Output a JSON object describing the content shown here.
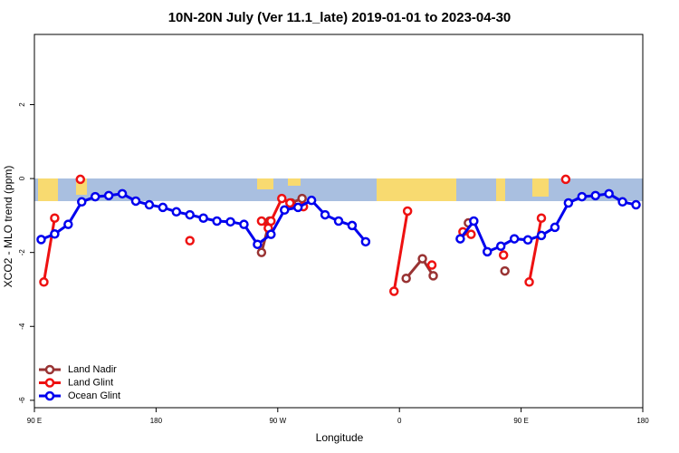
{
  "chart_data": {
    "type": "line",
    "title": "10N-20N July (Ver 11.1_late)   2019-01-01 to 2023-04-30",
    "x_label": "Longitude",
    "y_label": "XCO2 - MLO trend (ppm)",
    "xlim": [
      90,
      540
    ],
    "ylim": [
      -6.2,
      3.9
    ],
    "xticks": [
      {
        "value": 90,
        "label": "90 E"
      },
      180,
      {
        "value": 270,
        "label": "90 W"
      },
      {
        "value": 360,
        "label": "0"
      },
      {
        "value": 450,
        "label": "90 E"
      },
      {
        "value": 540,
        "label": "180"
      }
    ],
    "yticks": [
      -6,
      -4,
      -2,
      0,
      2
    ],
    "grid": false,
    "legend": "bottom-left",
    "series": [
      {
        "name": "Land Nadir",
        "color": "#993333",
        "x": [
          258,
          264,
          270,
          280,
          288,
          330,
          365,
          377,
          385,
          395,
          411,
          425,
          438
        ],
        "values": [
          -2.0,
          -1.15,
          null,
          -0.66,
          -0.54,
          null,
          -2.7,
          -2.17,
          -2.63,
          null,
          -1.2,
          null,
          -2.5
        ]
      },
      {
        "name": "Land Glint",
        "color": "#ee1111",
        "x": [
          97,
          105,
          115,
          124,
          135,
          205,
          215,
          258,
          263,
          265,
          273,
          279,
          289,
          300,
          356,
          366,
          375,
          384,
          395,
          407,
          410,
          413,
          425,
          437,
          450,
          456,
          465,
          475,
          483
        ],
        "values": [
          -2.8,
          -1.07,
          null,
          -0.02,
          null,
          -1.68,
          null,
          -1.15,
          -1.34,
          -1.15,
          -0.54,
          -0.66,
          -0.76,
          null,
          -3.05,
          -0.88,
          null,
          -2.34,
          null,
          -1.44,
          null,
          -1.51,
          null,
          -2.07,
          null,
          -2.8,
          -1.07,
          null,
          -0.02
        ]
      },
      {
        "name": "Ocean Glint",
        "color": "#0000ee",
        "x": [
          95,
          105,
          115,
          125,
          135,
          145,
          155,
          165,
          175,
          185,
          195,
          205,
          215,
          225,
          235,
          245,
          255,
          265,
          275,
          285,
          295,
          305,
          315,
          325,
          335,
          345,
          405,
          415,
          425,
          435,
          445,
          455,
          465,
          475,
          485,
          495,
          505,
          515,
          525,
          535
        ],
        "values": [
          -1.65,
          -1.5,
          -1.24,
          -0.63,
          -0.49,
          -0.46,
          -0.41,
          -0.61,
          -0.71,
          -0.78,
          -0.9,
          -0.98,
          -1.07,
          -1.15,
          -1.17,
          -1.24,
          -1.78,
          -1.51,
          -0.85,
          -0.78,
          -0.59,
          -0.98,
          -1.15,
          -1.27,
          -1.71,
          null,
          -1.63,
          -1.15,
          -1.98,
          -1.83,
          -1.63,
          -1.66,
          -1.54,
          -1.32,
          -0.66,
          -0.49,
          -0.46,
          -0.41,
          -0.63,
          -0.71
        ]
      }
    ]
  }
}
